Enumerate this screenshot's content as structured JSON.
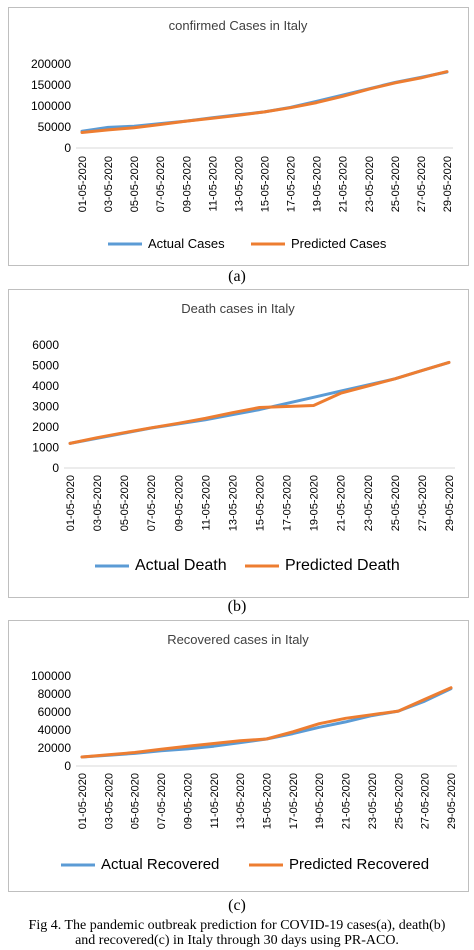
{
  "colors": {
    "actual": "#5b9bd5",
    "predicted": "#ed7d31"
  },
  "charts": [
    {
      "title": "confirmed Cases in Italy",
      "panel_label": "(a)"
    },
    {
      "title": "Death cases in Italy",
      "panel_label": "(b)"
    },
    {
      "title": "Recovered cases in Italy",
      "panel_label": "(c)"
    }
  ],
  "caption": {
    "line1": "Fig 4. The pandemic outbreak prediction for COVID-19 cases(a), death(b)",
    "line2": "and recovered(c) in Italy through 30 days using PR-ACO."
  },
  "chart_data": [
    {
      "type": "line",
      "title": "confirmed Cases in Italy",
      "categories": [
        "01-05-2020",
        "03-05-2020",
        "05-05-2020",
        "07-05-2020",
        "09-05-2020",
        "11-05-2020",
        "13-05-2020",
        "15-05-2020",
        "17-05-2020",
        "19-05-2020",
        "21-05-2020",
        "23-05-2020",
        "25-05-2020",
        "27-05-2020",
        "29-05-2020"
      ],
      "yticks": [
        0,
        50000,
        100000,
        150000,
        200000
      ],
      "yticklabels": [
        "0",
        "50000",
        "100000",
        "150000",
        "200000"
      ],
      "ylim": [
        0,
        200000
      ],
      "grid": false,
      "legend": "bottom",
      "series": [
        {
          "name": "Actual Cases",
          "values": [
            40000,
            49000,
            52000,
            58000,
            64000,
            72000,
            79000,
            86000,
            97000,
            111000,
            126000,
            141000,
            156000,
            168000,
            181000
          ]
        },
        {
          "name": "Predicted Cases",
          "values": [
            37000,
            43000,
            48000,
            56000,
            64000,
            71000,
            78000,
            86000,
            96000,
            108000,
            123000,
            140000,
            155000,
            167000,
            182000
          ]
        }
      ]
    },
    {
      "type": "line",
      "title": "Death cases in Italy",
      "categories": [
        "01-05-2020",
        "03-05-2020",
        "05-05-2020",
        "07-05-2020",
        "09-05-2020",
        "11-05-2020",
        "13-05-2020",
        "15-05-2020",
        "17-05-2020",
        "19-05-2020",
        "21-05-2020",
        "23-05-2020",
        "25-05-2020",
        "27-05-2020",
        "29-05-2020"
      ],
      "yticks": [
        0,
        1000,
        2000,
        3000,
        4000,
        5000,
        6000
      ],
      "yticklabels": [
        "0",
        "1000",
        "2000",
        "3000",
        "4000",
        "5000",
        "6000"
      ],
      "ylim": [
        0,
        6000
      ],
      "grid": false,
      "legend": "bottom",
      "series": [
        {
          "name": "Actual Death",
          "values": [
            1200,
            1450,
            1700,
            1950,
            2150,
            2350,
            2600,
            2850,
            3150,
            3450,
            3750,
            4050,
            4350,
            4750,
            5150
          ]
        },
        {
          "name": "Predicted Death",
          "values": [
            1200,
            1480,
            1720,
            1960,
            2180,
            2420,
            2700,
            2950,
            3000,
            3050,
            3650,
            4000,
            4350,
            4750,
            5150
          ]
        }
      ]
    },
    {
      "type": "line",
      "title": "Recovered cases in Italy",
      "categories": [
        "01-05-2020",
        "03-05-2020",
        "05-05-2020",
        "07-05-2020",
        "09-05-2020",
        "11-05-2020",
        "13-05-2020",
        "15-05-2020",
        "17-05-2020",
        "19-05-2020",
        "21-05-2020",
        "23-05-2020",
        "25-05-2020",
        "27-05-2020",
        "29-05-2020"
      ],
      "yticks": [
        0,
        20000,
        40000,
        60000,
        80000,
        100000
      ],
      "yticklabels": [
        "0",
        "20000",
        "40000",
        "60000",
        "80000",
        "100000"
      ],
      "ylim": [
        0,
        100000
      ],
      "grid": false,
      "legend": "bottom",
      "series": [
        {
          "name": "Actual Recovered",
          "values": [
            10000,
            12000,
            14000,
            17000,
            19000,
            22000,
            26000,
            30000,
            36000,
            43000,
            49000,
            56000,
            61000,
            72000,
            86000
          ]
        },
        {
          "name": "Predicted Recovered",
          "values": [
            10000,
            12500,
            15000,
            18500,
            22000,
            25000,
            28000,
            30000,
            38000,
            47000,
            53000,
            57000,
            61000,
            74000,
            87000
          ]
        }
      ]
    }
  ]
}
